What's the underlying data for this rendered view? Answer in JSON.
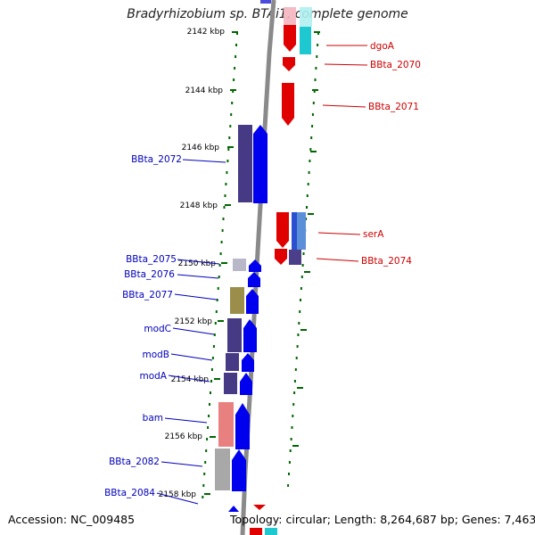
{
  "title": "Bradyrhizobium sp. BTAi1, complete genome",
  "footer": {
    "accession": "Accession: NC_009485",
    "topology": "Topology: circular; Length: 8,264,687 bp; Genes: 7,463"
  },
  "colors": {
    "forward_gene": "#0000ee",
    "reverse_gene": "#ee0000",
    "left_label": "#0000bb",
    "right_label": "#cc0000",
    "tick": "#006600",
    "axis": "#888888"
  },
  "left_ticks": [
    {
      "label": "2142 kbp"
    },
    {
      "label": "2144 kbp"
    },
    {
      "label": "2146 kbp"
    },
    {
      "label": "2148 kbp"
    },
    {
      "label": "2150 kbp"
    },
    {
      "label": "2152 kbp"
    },
    {
      "label": "2154 kbp"
    },
    {
      "label": "2156 kbp"
    },
    {
      "label": "2158 kbp"
    }
  ],
  "left_genes": [
    {
      "label": "BBta_2072"
    },
    {
      "label": "BBta_2075"
    },
    {
      "label": "BBta_2076"
    },
    {
      "label": "BBta_2077"
    },
    {
      "label": "modC"
    },
    {
      "label": "modB"
    },
    {
      "label": "modA"
    },
    {
      "label": "bam"
    },
    {
      "label": "BBta_2082"
    },
    {
      "label": "BBta_2084"
    }
  ],
  "right_genes": [
    {
      "label": "dgoA"
    },
    {
      "label": "BBta_2070"
    },
    {
      "label": "BBta_2071"
    },
    {
      "label": "serA"
    },
    {
      "label": "BBta_2074"
    }
  ]
}
